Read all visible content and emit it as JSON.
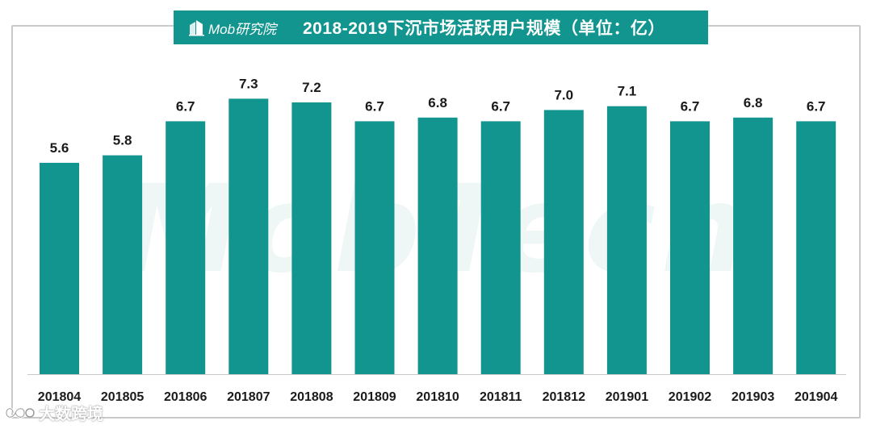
{
  "header": {
    "brand": "Mob研究院",
    "title": "2018-2019下沉市场活跃用户规模（单位：亿）"
  },
  "watermark": {
    "background_text": "MobTech",
    "footer_text": "大数跨境"
  },
  "colors": {
    "bar": "#12958f",
    "title_bg": "#12958f",
    "label": "#1a1a1a",
    "axis": "#c9c9c9"
  },
  "chart_data": {
    "type": "bar",
    "title": "2018-2019下沉市场活跃用户规模（单位：亿）",
    "categories": [
      "201804",
      "201805",
      "201806",
      "201807",
      "201808",
      "201809",
      "201810",
      "201811",
      "201812",
      "201901",
      "201902",
      "201903",
      "201904"
    ],
    "values": [
      5.6,
      5.8,
      6.7,
      7.3,
      7.2,
      6.7,
      6.8,
      6.7,
      7.0,
      7.1,
      6.7,
      6.8,
      6.7
    ],
    "value_labels": [
      "5.6",
      "5.8",
      "6.7",
      "7.3",
      "7.2",
      "6.7",
      "6.8",
      "6.7",
      "7.0",
      "7.1",
      "6.7",
      "6.8",
      "6.7"
    ],
    "xlabel": "",
    "ylabel": "",
    "ylim": [
      0,
      8
    ],
    "grid": false,
    "legend": "none",
    "data_labels": "above bars"
  }
}
